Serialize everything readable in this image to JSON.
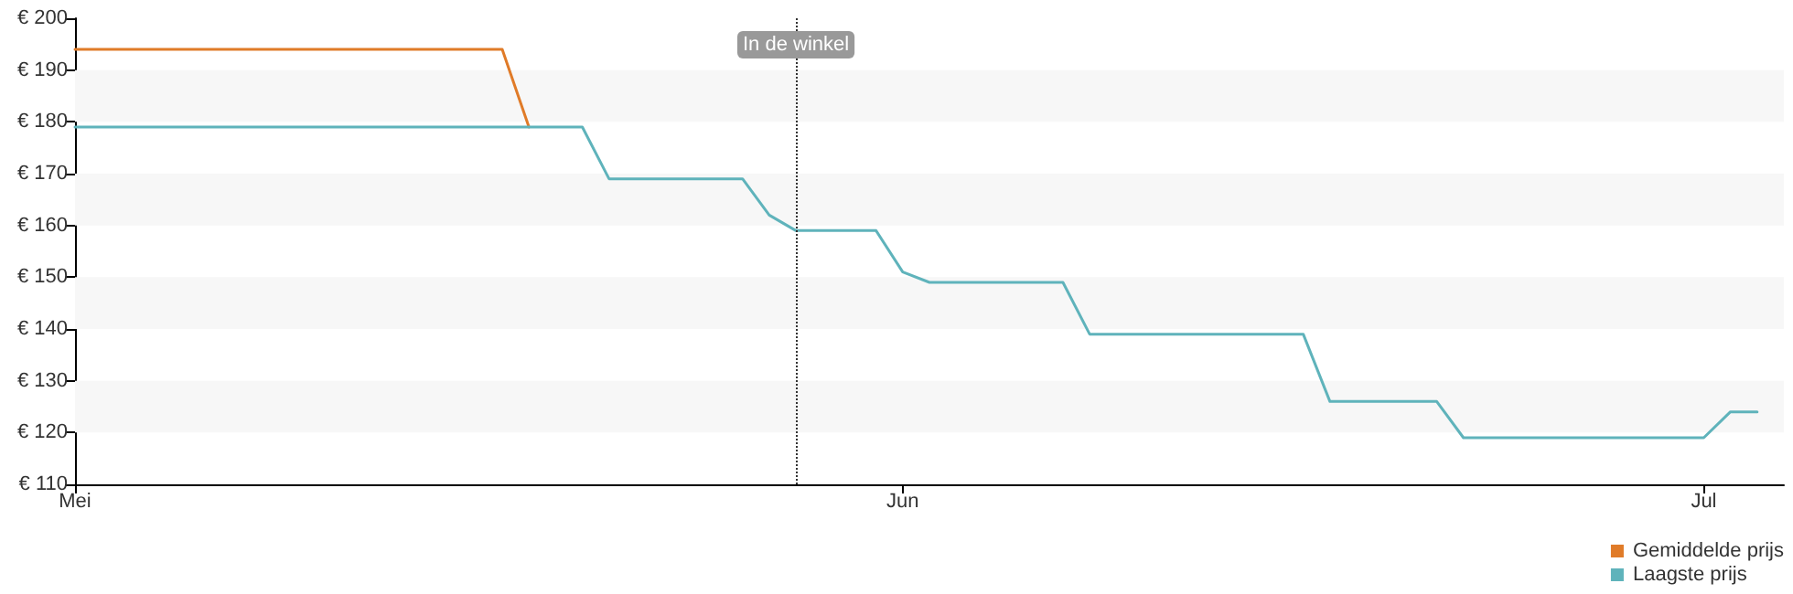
{
  "chart_data": {
    "type": "line",
    "series": [
      {
        "name": "Gemiddelde prijs",
        "color": "#e07b28",
        "x": [
          "--05-01",
          "--05-17",
          "--05-18"
        ],
        "values": [
          194,
          194,
          179
        ]
      },
      {
        "name": "Laagste prijs",
        "color": "#5fb3bb",
        "x": [
          "--05-01",
          "--05-20",
          "--05-21",
          "--05-26",
          "--05-27",
          "--05-28",
          "--05-31",
          "--06-01",
          "--06-02",
          "--06-07",
          "--06-08",
          "--06-16",
          "--06-17",
          "--06-21",
          "--06-22",
          "--07-01",
          "--07-02",
          "--07-03"
        ],
        "values": [
          179,
          179,
          169,
          169,
          162,
          159,
          159,
          151,
          149,
          149,
          139,
          139,
          126,
          126,
          119,
          119,
          124,
          124
        ]
      }
    ],
    "xlim": [
      "--05-01",
      "--07-04"
    ],
    "xticks": [
      {
        "value": "--05-01",
        "label": "Mei"
      },
      {
        "value": "--06-01",
        "label": "Jun"
      },
      {
        "value": "--07-01",
        "label": "Jul"
      }
    ],
    "ylim": [
      110,
      200
    ],
    "yticks": [
      {
        "value": 110,
        "label": "€ 110"
      },
      {
        "value": 120,
        "label": "€ 120"
      },
      {
        "value": 130,
        "label": "€ 130"
      },
      {
        "value": 140,
        "label": "€ 140"
      },
      {
        "value": 150,
        "label": "€ 150"
      },
      {
        "value": 160,
        "label": "€ 160"
      },
      {
        "value": 170,
        "label": "€ 170"
      },
      {
        "value": 180,
        "label": "€ 180"
      },
      {
        "value": 190,
        "label": "€ 190"
      },
      {
        "value": 200,
        "label": "€ 200"
      }
    ],
    "ref_lines": [
      {
        "axis": "x",
        "value": "--05-28",
        "label": "In de winkel",
        "line_style": "dotted",
        "color": "#333333"
      }
    ],
    "bands": [
      {
        "axis": "y",
        "from": 120,
        "to": 130,
        "color": "#f7f7f7"
      },
      {
        "axis": "y",
        "from": 140,
        "to": 150,
        "color": "#f7f7f7"
      },
      {
        "axis": "y",
        "from": 160,
        "to": 170,
        "color": "#f7f7f7"
      },
      {
        "axis": "y",
        "from": 180,
        "to": 190,
        "color": "#f7f7f7"
      }
    ],
    "legend": "bottom right",
    "marker": "none",
    "line_style": "solid"
  }
}
